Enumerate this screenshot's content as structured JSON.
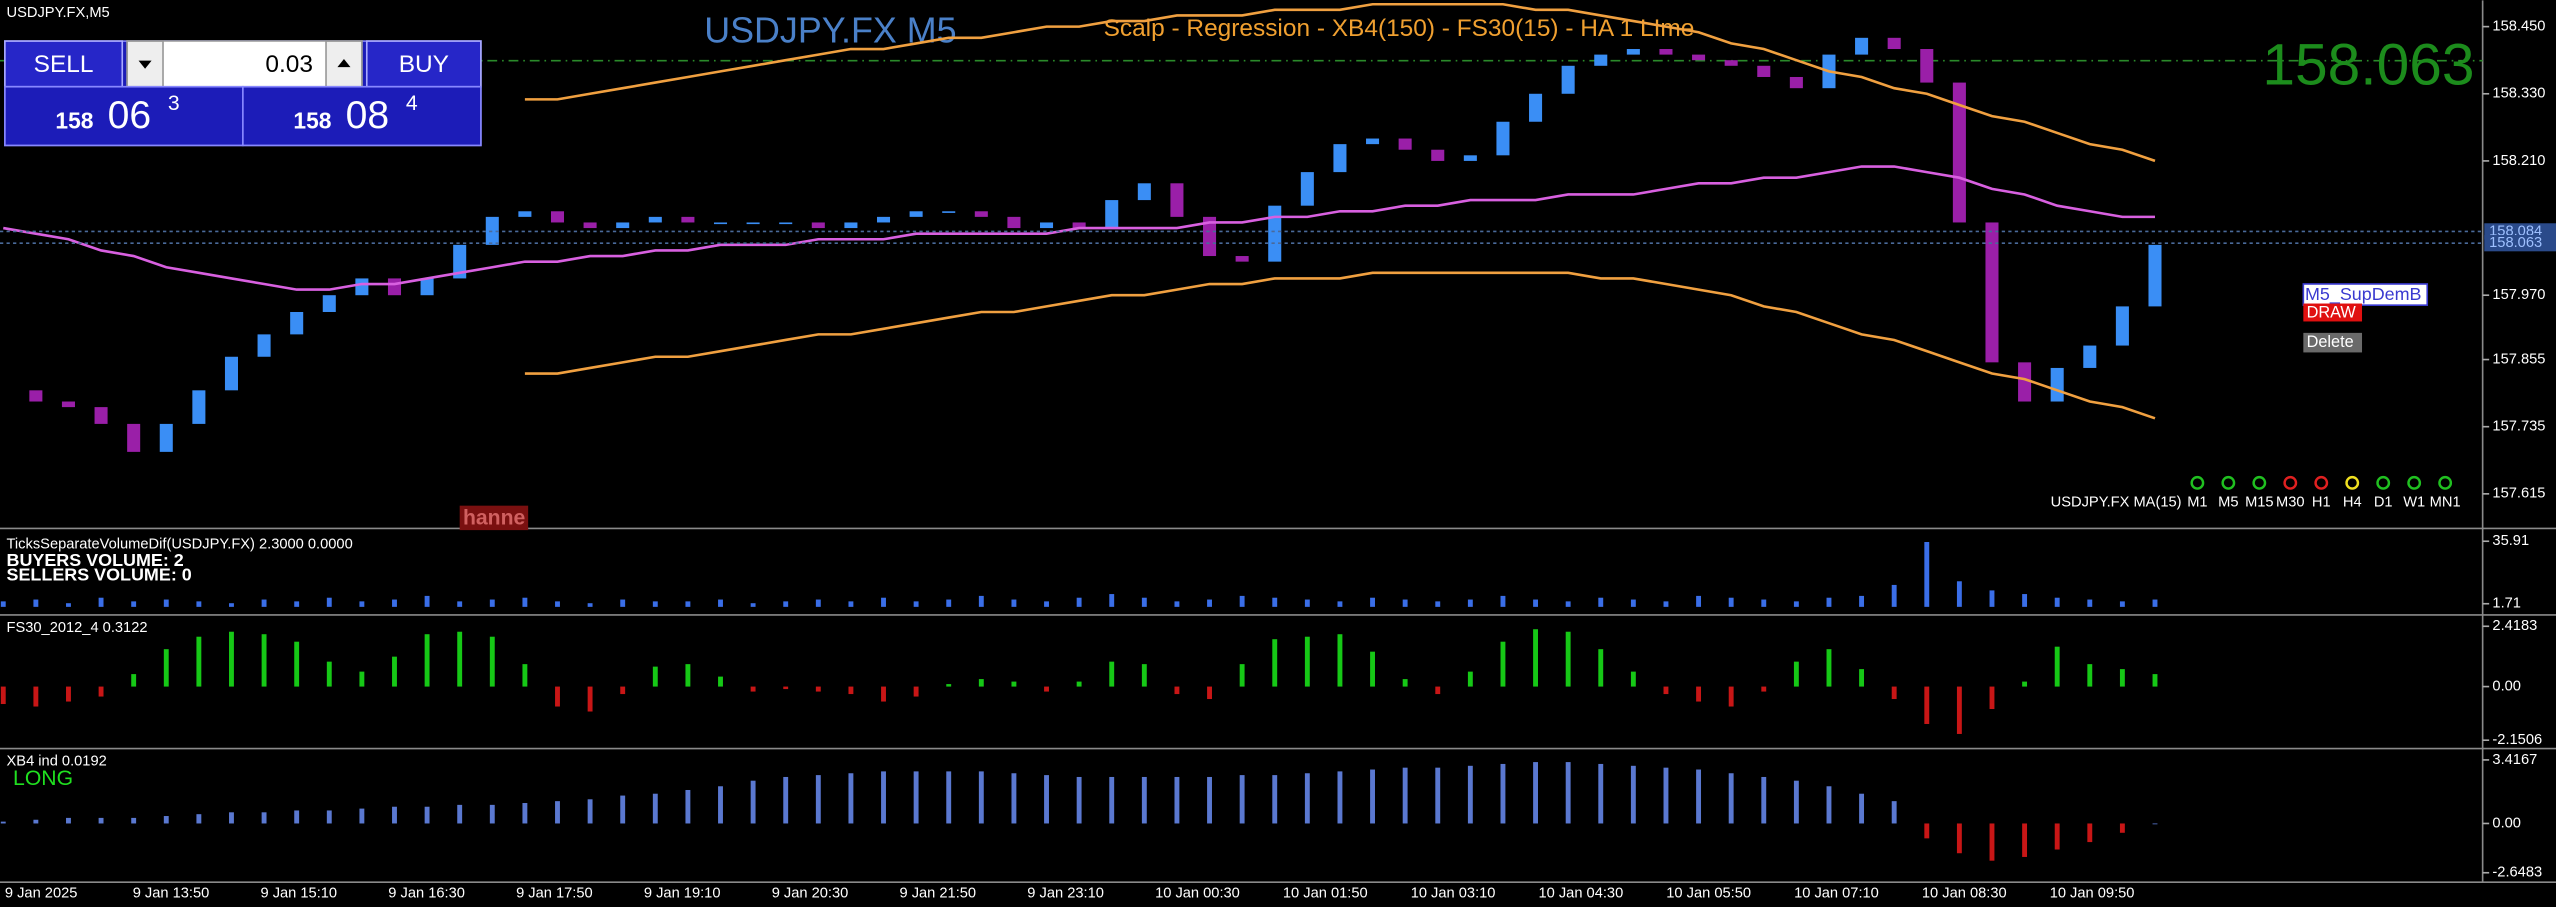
{
  "header": {
    "symbol": "USDJPY.FX,M5",
    "title": "USDJPY.FX M5",
    "subtitle": "Scalp - Regression - XB4(150) - FS30(15) - HA  1 LIme",
    "last_price": "158.063"
  },
  "trade_panel": {
    "sell": "SELL",
    "lot": "0.03",
    "buy": "BUY",
    "bid": [
      "158",
      "06",
      "3"
    ],
    "ask": [
      "158",
      "08",
      "4"
    ]
  },
  "watermark": "hanne",
  "chart_data": [
    {
      "type": "candlestick",
      "x_labels": [
        "9 Jan 2025",
        "9 Jan 13:50",
        "9 Jan 15:10",
        "9 Jan 16:30",
        "9 Jan 17:50",
        "9 Jan 19:10",
        "9 Jan 20:30",
        "9 Jan 21:50",
        "9 Jan 23:10",
        "10 Jan 00:30",
        "10 Jan 01:50",
        "10 Jan 03:10",
        "10 Jan 04:30",
        "10 Jan 05:50",
        "10 Jan 07:10",
        "10 Jan 08:30",
        "10 Jan 09:50"
      ],
      "close": [
        157.8,
        157.78,
        157.77,
        157.74,
        157.69,
        157.74,
        157.8,
        157.86,
        157.9,
        157.94,
        157.97,
        158.0,
        157.97,
        158.0,
        158.06,
        158.11,
        158.12,
        158.1,
        158.09,
        158.1,
        158.11,
        158.1,
        158.1,
        158.1,
        158.1,
        158.09,
        158.1,
        158.11,
        158.12,
        158.12,
        158.11,
        158.09,
        158.1,
        158.09,
        158.14,
        158.17,
        158.11,
        158.04,
        158.03,
        158.13,
        158.19,
        158.24,
        158.25,
        158.23,
        158.21,
        158.22,
        158.28,
        158.33,
        158.38,
        158.4,
        158.41,
        158.4,
        158.39,
        158.38,
        158.36,
        158.34,
        158.4,
        158.43,
        158.41,
        158.35,
        158.1,
        157.85,
        157.78,
        157.84,
        157.88,
        157.95,
        158.06
      ],
      "up_color": "#3a8ef5",
      "down_color": "#9a1fa8",
      "series": [
        {
          "color": "#d860e0",
          "values": [
            158.09,
            158.08,
            158.07,
            158.05,
            158.04,
            158.02,
            158.01,
            158.0,
            157.99,
            157.98,
            157.98,
            157.99,
            157.99,
            158.0,
            158.01,
            158.02,
            158.03,
            158.03,
            158.04,
            158.04,
            158.05,
            158.05,
            158.06,
            158.06,
            158.06,
            158.07,
            158.07,
            158.07,
            158.08,
            158.08,
            158.08,
            158.08,
            158.08,
            158.09,
            158.09,
            158.09,
            158.09,
            158.1,
            158.1,
            158.11,
            158.11,
            158.12,
            158.12,
            158.13,
            158.13,
            158.14,
            158.14,
            158.14,
            158.15,
            158.15,
            158.15,
            158.16,
            158.17,
            158.17,
            158.18,
            158.18,
            158.19,
            158.2,
            158.2,
            158.19,
            158.18,
            158.16,
            158.15,
            158.13,
            158.12,
            158.11,
            158.11
          ]
        },
        {
          "color": "#f0a040",
          "values": [
            null,
            null,
            null,
            null,
            null,
            null,
            null,
            null,
            null,
            null,
            null,
            null,
            null,
            null,
            null,
            null,
            158.32,
            158.32,
            158.33,
            158.34,
            158.35,
            158.36,
            158.37,
            158.38,
            158.39,
            158.4,
            158.41,
            158.41,
            158.42,
            158.43,
            158.43,
            158.44,
            158.45,
            158.45,
            158.46,
            158.46,
            158.47,
            158.47,
            158.47,
            158.48,
            158.48,
            158.48,
            158.49,
            158.49,
            158.49,
            158.49,
            158.49,
            158.48,
            158.48,
            158.47,
            158.46,
            158.45,
            158.44,
            158.42,
            158.41,
            158.39,
            158.37,
            158.36,
            158.34,
            158.33,
            158.31,
            158.29,
            158.28,
            158.26,
            158.24,
            158.23,
            158.21
          ]
        },
        {
          "color": "#f0a040",
          "values": [
            null,
            null,
            null,
            null,
            null,
            null,
            null,
            null,
            null,
            null,
            null,
            null,
            null,
            null,
            null,
            null,
            157.83,
            157.83,
            157.84,
            157.85,
            157.86,
            157.86,
            157.87,
            157.88,
            157.89,
            157.9,
            157.9,
            157.91,
            157.92,
            157.93,
            157.94,
            157.94,
            157.95,
            157.96,
            157.97,
            157.97,
            157.98,
            157.99,
            157.99,
            158.0,
            158.0,
            158.0,
            158.01,
            158.01,
            158.01,
            158.01,
            158.01,
            158.01,
            158.01,
            158.0,
            158.0,
            157.99,
            157.98,
            157.97,
            157.95,
            157.94,
            157.92,
            157.9,
            157.89,
            157.87,
            157.85,
            157.83,
            157.82,
            157.8,
            157.78,
            157.77,
            157.75
          ]
        }
      ],
      "ylim": [
        157.556,
        158.497
      ],
      "yticks": [
        {
          "value": 158.45,
          "label": "158.450"
        },
        {
          "value": 158.33,
          "label": "158.330"
        },
        {
          "value": 158.21,
          "label": "158.210"
        },
        {
          "value": 157.97,
          "label": "157.970"
        },
        157.855,
        157.735,
        157.615
      ],
      "price_labels": [
        158.084,
        158.063
      ],
      "indicator_label": "USDJPY.FX MA(15)",
      "timeframes": [
        "M1",
        "M5",
        "M15",
        "M30",
        "H1",
        "H4",
        "D1",
        "W1",
        "MN1"
      ],
      "timeframe_colors": [
        "#20c020",
        "#20c020",
        "#20c020",
        "#e02020",
        "#e02020",
        "#f0e020",
        "#20c020",
        "#20c020",
        "#20c020"
      ],
      "objects": {
        "name": "M5_SupDemB",
        "draw": "DRAW",
        "delete": "Delete"
      }
    },
    {
      "type": "bar",
      "title": "TicksSeparateVolumeDif(USDJPY.FX) 2.3000 0.0000",
      "notes": [
        "BUYERS VOLUME: 2",
        "SELLERS VOLUME: 0"
      ],
      "color": "#3a6ee8",
      "values": [
        3,
        4,
        2,
        5,
        3,
        4,
        3,
        2,
        4,
        3,
        5,
        3,
        4,
        6,
        3,
        4,
        5,
        3,
        2,
        4,
        3,
        3,
        4,
        2,
        3,
        4,
        3,
        5,
        3,
        4,
        6,
        4,
        3,
        5,
        7,
        5,
        3,
        4,
        6,
        5,
        4,
        3,
        5,
        4,
        3,
        4,
        6,
        4,
        3,
        5,
        4,
        3,
        6,
        5,
        4,
        3,
        5,
        6,
        12,
        35.5,
        14,
        9,
        7,
        5,
        4,
        3,
        4
      ],
      "ylim": [
        -3.5,
        42
      ],
      "yticks": [
        35.91,
        1.71
      ]
    },
    {
      "type": "bar",
      "title": "FS30_2012_4 0.3122",
      "pos_color": "#16c816",
      "neg_color": "#c81616",
      "values": [
        -0.7,
        -0.8,
        -0.6,
        -0.4,
        0.5,
        1.5,
        2.0,
        2.2,
        2.1,
        1.8,
        1.0,
        0.6,
        1.2,
        2.1,
        2.2,
        2.0,
        0.9,
        -0.8,
        -1.0,
        -0.3,
        0.8,
        0.9,
        0.4,
        -0.2,
        -0.1,
        -0.2,
        -0.3,
        -0.6,
        -0.4,
        0.1,
        0.3,
        0.2,
        -0.2,
        0.2,
        1.0,
        0.9,
        -0.3,
        -0.5,
        0.9,
        1.9,
        2.0,
        2.1,
        1.4,
        0.3,
        -0.3,
        0.6,
        1.8,
        2.3,
        2.2,
        1.5,
        0.6,
        -0.3,
        -0.6,
        -0.8,
        -0.2,
        1.0,
        1.5,
        0.7,
        -0.5,
        -1.5,
        -1.9,
        -0.9,
        0.2,
        1.6,
        0.9,
        0.7,
        0.5
      ],
      "ylim": [
        -2.42,
        2.81
      ],
      "yticks": [
        2.4183,
        {
          "value": 0,
          "label": "0.00"
        },
        -2.1506
      ]
    },
    {
      "type": "bar",
      "title": "XB4 ind 0.0192",
      "signal": "LONG",
      "pos_color": "#5a78d0",
      "neg_color": "#c81616",
      "values": [
        0.1,
        0.2,
        0.3,
        0.3,
        0.3,
        0.4,
        0.5,
        0.6,
        0.6,
        0.7,
        0.7,
        0.8,
        0.9,
        0.9,
        1.0,
        1.0,
        1.1,
        1.2,
        1.3,
        1.5,
        1.6,
        1.8,
        2.0,
        2.3,
        2.5,
        2.6,
        2.7,
        2.8,
        2.8,
        2.8,
        2.8,
        2.7,
        2.6,
        2.5,
        2.5,
        2.5,
        2.5,
        2.5,
        2.6,
        2.6,
        2.7,
        2.8,
        2.9,
        3.0,
        3.0,
        3.1,
        3.2,
        3.3,
        3.3,
        3.2,
        3.1,
        3.0,
        2.9,
        2.7,
        2.5,
        2.3,
        2.0,
        1.6,
        1.2,
        -0.8,
        -1.6,
        -2.0,
        -1.8,
        -1.4,
        -1.0,
        -0.5,
        0.0
      ],
      "ylim": [
        -3.07,
        3.94
      ],
      "yticks": [
        3.4167,
        {
          "value": 0,
          "label": "0.00"
        },
        -2.6483
      ]
    }
  ]
}
